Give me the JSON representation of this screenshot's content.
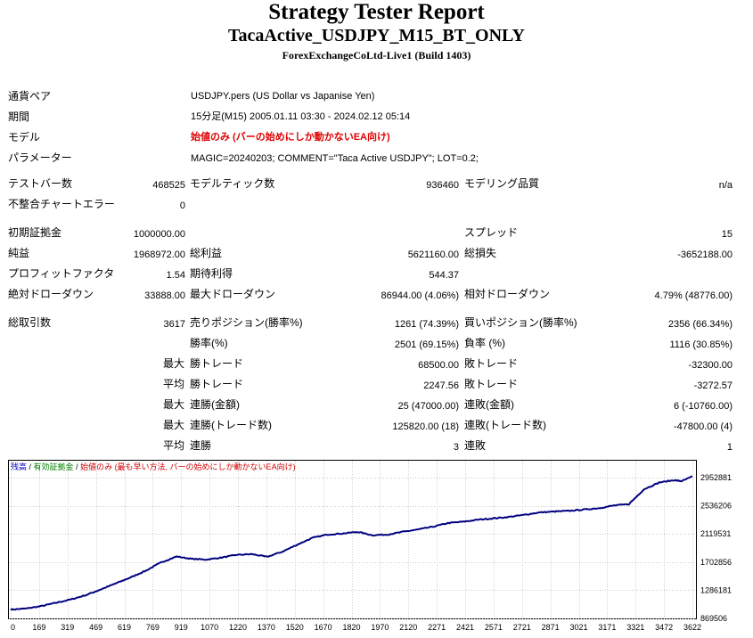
{
  "header": {
    "title": "Strategy Tester Report",
    "ea_name": "TacaActive_USDJPY_M15_BT_ONLY",
    "server": "ForexExchangeCoLtd-Live1 (Build 1403)"
  },
  "settings": {
    "symbol_label": "通貨ペア",
    "symbol_value": "USDJPY.pers (US Dollar vs Japanise Yen)",
    "period_label": "期間",
    "period_value": "15分足(M15) 2005.01.11 03:30 - 2024.02.12 05:14",
    "model_label": "モデル",
    "model_value": "始値のみ (バーの始めにしか動かないEA向け)",
    "params_label": "パラメーター",
    "params_value": "MAGIC=20240203; COMMENT=\"Taca Active USDJPY\"; LOT=0.2;"
  },
  "quality": {
    "bars_label": "テストバー数",
    "bars_value": "468525",
    "ticks_label": "モデルティック数",
    "ticks_value": "936460",
    "quality_label": "モデリング品質",
    "quality_value": "n/a",
    "mismatch_label": "不整合チャートエラー",
    "mismatch_value": "0"
  },
  "results": {
    "deposit_label": "初期証拠金",
    "deposit_value": "1000000.00",
    "spread_label": "スプレッド",
    "spread_value": "15",
    "net_label": "純益",
    "net_value": "1968972.00",
    "gross_profit_label": "総利益",
    "gross_profit_value": "5621160.00",
    "gross_loss_label": "総損失",
    "gross_loss_value": "-3652188.00",
    "pf_label": "プロフィットファクタ",
    "pf_value": "1.54",
    "expected_label": "期待利得",
    "expected_value": "544.37",
    "abs_dd_label": "絶対ドローダウン",
    "abs_dd_value": "33888.00",
    "max_dd_label": "最大ドローダウン",
    "max_dd_value": "86944.00 (4.06%)",
    "rel_dd_label": "相対ドローダウン",
    "rel_dd_value": "4.79% (48776.00)"
  },
  "trades": {
    "total_label": "総取引数",
    "total_value": "3617",
    "short_label": "売りポジション(勝率%)",
    "short_value": "1261 (74.39%)",
    "long_label": "買いポジション(勝率%)",
    "long_value": "2356 (66.34%)",
    "win_rate_label": "勝率(%)",
    "win_rate_value": "2501 (69.15%)",
    "loss_rate_label": "負率 (%)",
    "loss_rate_value": "1116 (30.85%)",
    "max_prefix": "最大",
    "avg_prefix": "平均",
    "largest_win_label": "勝トレード",
    "largest_win_value": "68500.00",
    "largest_loss_label": "敗トレード",
    "largest_loss_value": "-32300.00",
    "avg_win_label": "勝トレード",
    "avg_win_value": "2247.56",
    "avg_loss_label": "敗トレード",
    "avg_loss_value": "-3272.57",
    "max_consec_win_label": "連勝(金額)",
    "max_consec_win_value": "25 (47000.00)",
    "max_consec_loss_label": "連敗(金額)",
    "max_consec_loss_value": "6 (-10760.00)",
    "max_consec_profit_label": "連勝(トレード数)",
    "max_consec_profit_value": "125820.00 (18)",
    "max_consec_lossamt_label": "連敗(トレード数)",
    "max_consec_lossamt_value": "-47800.00 (4)",
    "avg_consec_win_label": "連勝",
    "avg_consec_win_value": "3",
    "avg_consec_loss_label": "連敗",
    "avg_consec_loss_value": "1"
  },
  "chart_data": {
    "type": "line",
    "legend": {
      "balance": "残高",
      "sep1": " / ",
      "equity": "有効証拠金",
      "sep2": " / ",
      "model": "始値のみ (最も早い方法, バーの始めにしか動かないEA向け)"
    },
    "legend_colors": {
      "balance": "#0000c0",
      "equity": "#008000",
      "model": "#d00000"
    },
    "line_color": "#00007f",
    "xlabels": [
      "0",
      "169",
      "319",
      "469",
      "619",
      "769",
      "919",
      "1070",
      "1220",
      "1370",
      "1520",
      "1670",
      "1820",
      "1970",
      "2120",
      "2271",
      "2421",
      "2571",
      "2721",
      "2871",
      "3021",
      "3171",
      "3321",
      "3472",
      "3622"
    ],
    "ylabels": [
      "2952881",
      "2536206",
      "2119531",
      "1702856",
      "1286181",
      "869506"
    ],
    "ylim": [
      869506,
      2952881
    ],
    "xlim": [
      0,
      3617
    ],
    "x": [
      0,
      80,
      160,
      240,
      320,
      400,
      480,
      560,
      640,
      720,
      800,
      880,
      960,
      1040,
      1120,
      1200,
      1280,
      1360,
      1440,
      1520,
      1600,
      1680,
      1760,
      1840,
      1920,
      2000,
      2080,
      2160,
      2240,
      2320,
      2400,
      2480,
      2560,
      2640,
      2720,
      2800,
      2880,
      2960,
      3040,
      3120,
      3200,
      3280,
      3360,
      3440,
      3520,
      3560,
      3617
    ],
    "y": [
      1000000,
      1015000,
      1050000,
      1100000,
      1150000,
      1215000,
      1300000,
      1390000,
      1480000,
      1580000,
      1700000,
      1785000,
      1750000,
      1740000,
      1770000,
      1810000,
      1820000,
      1780000,
      1855000,
      1960000,
      2060000,
      2110000,
      2125000,
      2150000,
      2100000,
      2110000,
      2150000,
      2185000,
      2225000,
      2280000,
      2300000,
      2330000,
      2350000,
      2370000,
      2400000,
      2435000,
      2450000,
      2460000,
      2480000,
      2500000,
      2540000,
      2560000,
      2780000,
      2880000,
      2915000,
      2900000,
      2968972
    ],
    "grid": true
  }
}
